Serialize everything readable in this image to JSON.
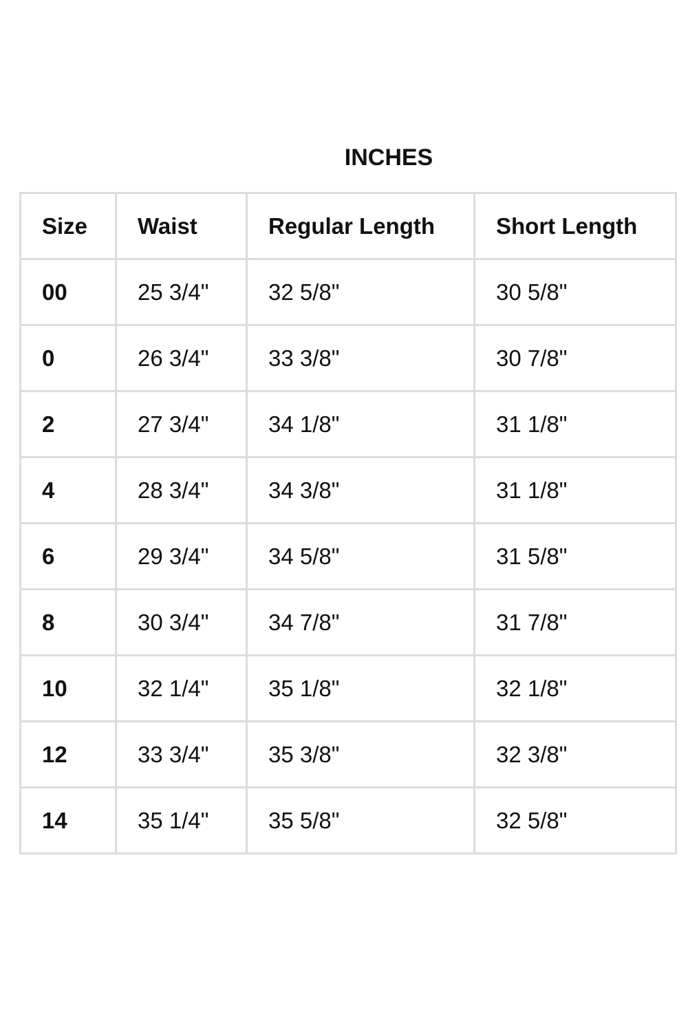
{
  "title": "INCHES",
  "columns": [
    "Size",
    "Waist",
    "Regular Length",
    "Short Length"
  ],
  "rows": [
    [
      "00",
      "25 3/4\"",
      "32 5/8\"",
      "30 5/8\""
    ],
    [
      "0",
      "26 3/4\"",
      "33 3/8\"",
      "30 7/8\""
    ],
    [
      "2",
      "27 3/4\"",
      "34 1/8\"",
      "31 1/8\""
    ],
    [
      "4",
      "28 3/4\"",
      "34 3/8\"",
      "31 1/8\""
    ],
    [
      "6",
      "29 3/4\"",
      "34 5/8\"",
      "31 5/8\""
    ],
    [
      "8",
      "30 3/4\"",
      "34 7/8\"",
      "31 7/8\""
    ],
    [
      "10",
      "32 1/4\"",
      "35 1/8\"",
      "32 1/8\""
    ],
    [
      "12",
      "33 3/4\"",
      "35 3/8\"",
      "32 3/8\""
    ],
    [
      "14",
      "35 1/4\"",
      "35 5/8\"",
      "32 5/8\""
    ]
  ]
}
